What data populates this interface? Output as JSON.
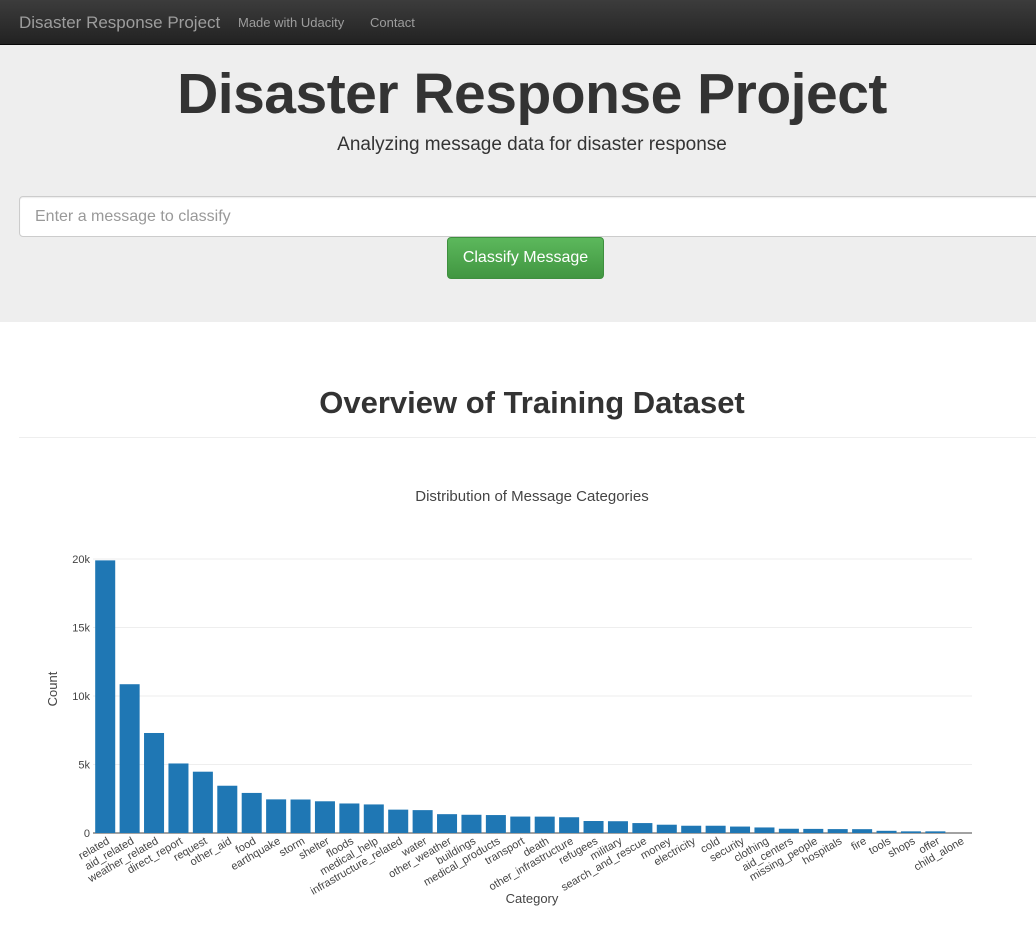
{
  "navbar": {
    "brand": "Disaster Response Project",
    "links": [
      "Made with Udacity",
      "Contact"
    ]
  },
  "hero": {
    "title": "Disaster Response Project",
    "subtitle": "Analyzing message data for disaster response",
    "input_placeholder": "Enter a message to classify",
    "button_label": "Classify Message"
  },
  "overview": {
    "title": "Overview of Training Dataset"
  },
  "colors": {
    "bar": "#1f77b4",
    "button": "#5cb85c",
    "navbar": "#222222"
  },
  "chart_data": {
    "type": "bar",
    "title": "Distribution of Message Categories",
    "xlabel": "Category",
    "ylabel": "Count",
    "ylim": [
      0,
      20000
    ],
    "yticks": [
      0,
      5000,
      10000,
      15000,
      20000
    ],
    "ytick_labels": [
      "0",
      "5k",
      "10k",
      "15k",
      "20k"
    ],
    "grid": true,
    "categories": [
      "related",
      "aid_related",
      "weather_related",
      "direct_report",
      "request",
      "other_aid",
      "food",
      "earthquake",
      "storm",
      "shelter",
      "floods",
      "medical_help",
      "infrastructure_related",
      "water",
      "other_weather",
      "buildings",
      "medical_products",
      "transport",
      "death",
      "other_infrastructure",
      "refugees",
      "military",
      "search_and_rescue",
      "money",
      "electricity",
      "cold",
      "security",
      "clothing",
      "aid_centers",
      "missing_people",
      "hospitals",
      "fire",
      "tools",
      "shops",
      "offer",
      "child_alone"
    ],
    "values": [
      19900,
      10860,
      7300,
      5075,
      4475,
      3450,
      2925,
      2455,
      2445,
      2315,
      2155,
      2085,
      1705,
      1670,
      1375,
      1330,
      1310,
      1200,
      1195,
      1150,
      875,
      860,
      725,
      605,
      530,
      530,
      470,
      405,
      310,
      300,
      285,
      280,
      160,
      120,
      120,
      0
    ]
  }
}
